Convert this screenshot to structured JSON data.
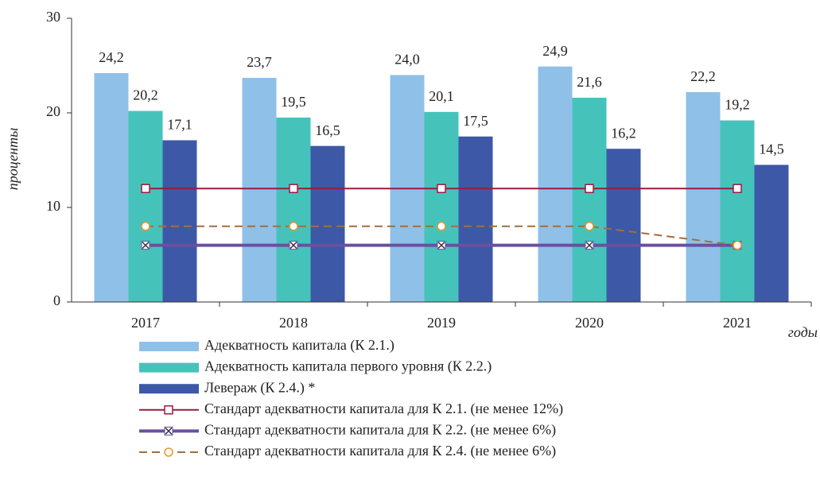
{
  "chart_data": {
    "type": "bar",
    "y_label": "проценты",
    "x_label": "годы",
    "categories": [
      "2017",
      "2018",
      "2019",
      "2020",
      "2021"
    ],
    "ylim": [
      0,
      30
    ],
    "yticks": [
      0,
      10,
      20,
      30
    ],
    "series": [
      {
        "name": "Адекватность капитала (К 2.1.)",
        "type": "bar",
        "color": "#8fc0e8",
        "values": [
          24.2,
          23.7,
          24.0,
          24.9,
          22.2
        ],
        "value_labels": [
          "24,2",
          "23,7",
          "24,0",
          "24,9",
          "22,2"
        ]
      },
      {
        "name": "Адекватность капитала первого уровня (К 2.2.)",
        "type": "bar",
        "color": "#45c3bb",
        "values": [
          20.2,
          19.5,
          20.1,
          21.6,
          19.2
        ],
        "value_labels": [
          "20,2",
          "19,5",
          "20,1",
          "21,6",
          "19,2"
        ]
      },
      {
        "name": "Леверaж (К 2.4.) *",
        "type": "bar",
        "color": "#3d58a6",
        "values": [
          17.1,
          16.5,
          17.5,
          16.2,
          14.5
        ],
        "value_labels": [
          "17,1",
          "16,5",
          "17,5",
          "16,2",
          "14,5"
        ]
      },
      {
        "name": "Стандарт адекватности капитала для К 2.1. (не менее 12%)",
        "type": "line",
        "marker": "square",
        "color": "#9a1b3e",
        "values": [
          12,
          12,
          12,
          12,
          12
        ]
      },
      {
        "name": "Стандарт адекватности капитала для К 2.2. (не менее 6%)",
        "type": "line",
        "marker": "x",
        "color": "#6a50a0",
        "values": [
          6,
          6,
          6,
          6,
          6
        ]
      },
      {
        "name": "Стандарт адекватности капитала для К 2.4. (не менее 6%)",
        "type": "line",
        "marker": "circle",
        "dashed": true,
        "color": "#a36e3a",
        "values": [
          8,
          8,
          8,
          8,
          6
        ]
      }
    ]
  }
}
